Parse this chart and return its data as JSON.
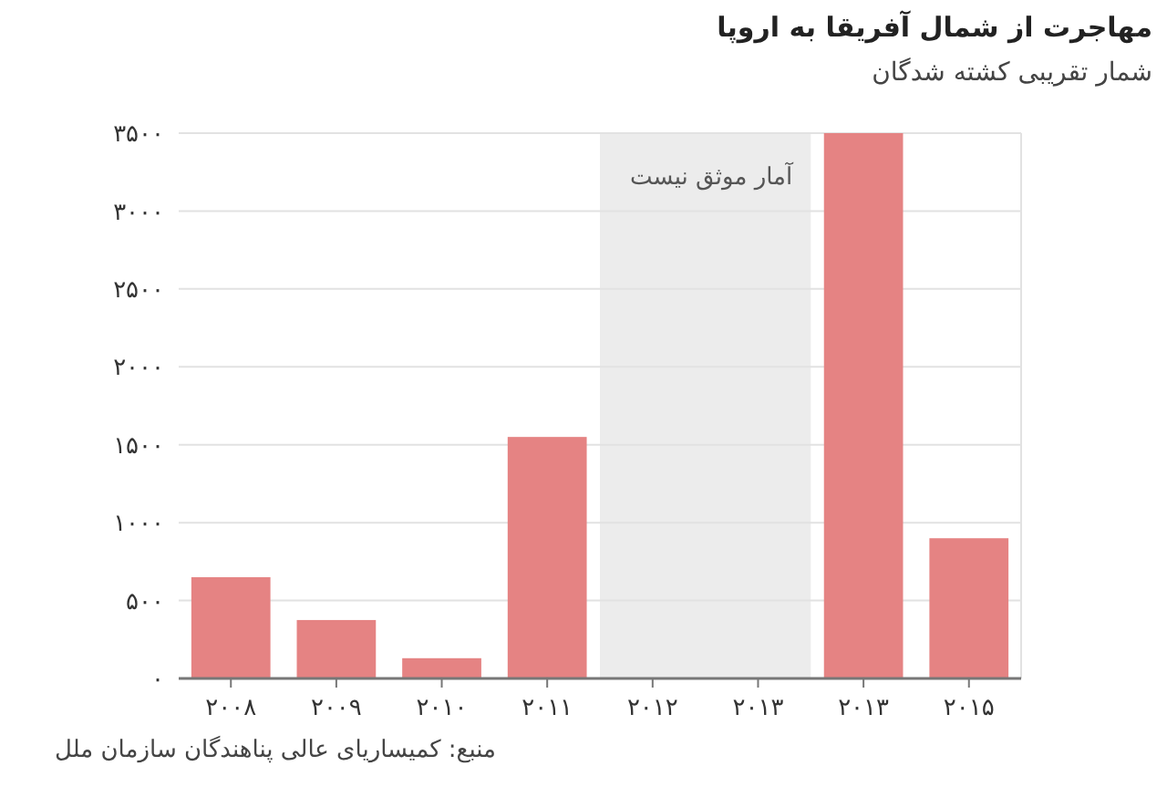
{
  "chart_data": {
    "type": "bar",
    "title": "مهاجرت از شمال آفریقا به اروپا",
    "subtitle": "شمار تقریبی کشته شدگان",
    "categories": [
      "۲۰۰۸",
      "۲۰۰۹",
      "۲۰۱۰",
      "۲۰۱۱",
      "۲۰۱۲",
      "۲۰۱۳",
      "۲۰۱۳",
      "۲۰۱۵"
    ],
    "values": [
      650,
      375,
      130,
      1550,
      null,
      null,
      3500,
      900
    ],
    "color": "#e58383",
    "ylim": [
      0,
      3500
    ],
    "yticks": [
      {
        "value": 0,
        "label": "۰"
      },
      {
        "value": 500,
        "label": "۵۰۰"
      },
      {
        "value": 1000,
        "label": "۱۰۰۰"
      },
      {
        "value": 1500,
        "label": "۱۵۰۰"
      },
      {
        "value": 2000,
        "label": "۲۰۰۰"
      },
      {
        "value": 2500,
        "label": "۲۵۰۰"
      },
      {
        "value": 3000,
        "label": "۳۰۰۰"
      },
      {
        "value": 3500,
        "label": "۳۵۰۰"
      }
    ],
    "grid": "y",
    "bands": [
      {
        "axis": "x",
        "from": "۲۰۱۲",
        "to": "۲۰۱۳",
        "label": "آمار موثق نیست",
        "color": "#ececec"
      }
    ],
    "annotations": [
      "منبع: کمیساریای عالی پناهندگان سازمان ملل"
    ]
  }
}
